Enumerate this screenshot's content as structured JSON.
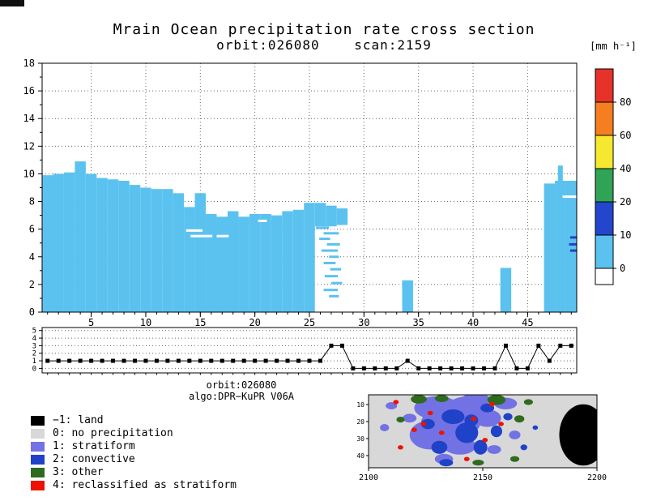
{
  "header": {
    "title": "Mrain Ocean precipitation rate cross section",
    "subtitle": "orbit:026080    scan:2159",
    "colorbar_unit": "[mm h⁻¹]"
  },
  "caption": {
    "line1": "orbit:026080",
    "line2": "algo:DPR−KuPR V06A"
  },
  "colorbar": {
    "labels": [
      "80",
      "60",
      "40",
      "20",
      "10",
      "0"
    ],
    "colors_top_to_bottom": [
      "#e63229",
      "#f57e20",
      "#f5e82e",
      "#2fa356",
      "#2446cc",
      "#5bc2f0",
      "#ffffff"
    ]
  },
  "legend": {
    "items": [
      {
        "color": "#000000",
        "label": "−1: land"
      },
      {
        "color": "#d8d8d8",
        "label": "0: no precipitation"
      },
      {
        "color": "#7272e4",
        "label": "1: stratiform"
      },
      {
        "color": "#2042c8",
        "label": "2: convective"
      },
      {
        "color": "#2e6b1e",
        "label": "3: other"
      },
      {
        "color": "#ee1100",
        "label": "4: reclassified as stratiform"
      }
    ]
  },
  "chart_data": [
    {
      "name": "cross_section",
      "type": "area",
      "title": "Mrain Ocean precipitation rate cross section",
      "xlim": [
        0.5,
        49.5
      ],
      "ylim": [
        0,
        18
      ],
      "xticks": [
        5,
        10,
        15,
        20,
        25,
        30,
        35,
        40,
        45
      ],
      "yticks": [
        0,
        2,
        4,
        6,
        8,
        10,
        12,
        14,
        16,
        18
      ],
      "grid": "dotted",
      "fill_color": "#5bc2f0",
      "columns": [
        {
          "x": 1,
          "h": 9.9
        },
        {
          "x": 2,
          "h": 10.0
        },
        {
          "x": 3,
          "h": 10.1
        },
        {
          "x": 4,
          "h": 10.9
        },
        {
          "x": 5,
          "h": 10.0
        },
        {
          "x": 6,
          "h": 9.7
        },
        {
          "x": 7,
          "h": 9.6
        },
        {
          "x": 8,
          "h": 9.5
        },
        {
          "x": 9,
          "h": 9.2
        },
        {
          "x": 10,
          "h": 9.0
        },
        {
          "x": 11,
          "h": 8.9
        },
        {
          "x": 12,
          "h": 8.9
        },
        {
          "x": 13,
          "h": 8.6
        },
        {
          "x": 14,
          "h": 7.6
        },
        {
          "x": 15,
          "h": 8.6
        },
        {
          "x": 16,
          "h": 7.1
        },
        {
          "x": 17,
          "h": 6.9
        },
        {
          "x": 18,
          "h": 7.3
        },
        {
          "x": 19,
          "h": 6.9
        },
        {
          "x": 20,
          "h": 7.1
        },
        {
          "x": 21,
          "h": 7.1
        },
        {
          "x": 22,
          "h": 7.0
        },
        {
          "x": 23,
          "h": 7.3
        },
        {
          "x": 24,
          "h": 7.4
        },
        {
          "x": 25,
          "h": 7.9
        },
        {
          "x": 26,
          "h": 7.9,
          "b": 6.2
        },
        {
          "x": 27,
          "h": 7.7,
          "b": 6.2
        },
        {
          "x": 28,
          "h": 7.5,
          "b": 6.3
        },
        {
          "x": 34,
          "h": 2.3
        },
        {
          "x": 43,
          "h": 3.2
        },
        {
          "x": 47,
          "h": 9.3
        },
        {
          "x": 48,
          "h": 9.5
        },
        {
          "x": 48,
          "h": 10.6,
          "w": 0.45
        },
        {
          "x": 49,
          "h": 9.5
        }
      ],
      "dashes": [
        {
          "x": 13.7,
          "y": 5.9,
          "w": 1.5,
          "c": "#ffffff"
        },
        {
          "x": 14.1,
          "y": 5.5,
          "w": 2.0,
          "c": "#ffffff"
        },
        {
          "x": 16.5,
          "y": 5.5,
          "w": 1.1,
          "c": "#ffffff"
        },
        {
          "x": 20.3,
          "y": 6.6,
          "w": 0.8,
          "c": "#ffffff"
        },
        {
          "x": 48.2,
          "y": 8.35,
          "w": 1.3,
          "c": "#ffffff"
        },
        {
          "x": 25.6,
          "y": 6.1,
          "w": 1.2
        },
        {
          "x": 26.3,
          "y": 5.7,
          "w": 1.4
        },
        {
          "x": 25.9,
          "y": 5.3,
          "w": 1.0
        },
        {
          "x": 26.6,
          "y": 4.9,
          "w": 1.2
        },
        {
          "x": 26.1,
          "y": 4.45,
          "w": 1.5
        },
        {
          "x": 26.8,
          "y": 4.0,
          "w": 0.9
        },
        {
          "x": 26.3,
          "y": 3.55,
          "w": 1.1
        },
        {
          "x": 26.9,
          "y": 3.1,
          "w": 1.0
        },
        {
          "x": 26.4,
          "y": 2.6,
          "w": 1.2
        },
        {
          "x": 27.0,
          "y": 2.1,
          "w": 1.0
        },
        {
          "x": 26.3,
          "y": 1.6,
          "w": 1.3
        },
        {
          "x": 26.8,
          "y": 1.15,
          "w": 0.9
        },
        {
          "x": 48.9,
          "y": 5.4,
          "w": 0.6,
          "c": "#2042c8"
        },
        {
          "x": 48.8,
          "y": 4.9,
          "w": 0.7,
          "c": "#2042c8"
        },
        {
          "x": 48.9,
          "y": 4.45,
          "w": 0.6,
          "c": "#2042c8"
        }
      ]
    },
    {
      "name": "rain_type_strip",
      "type": "line",
      "ylim": [
        -0.6,
        5.4
      ],
      "yticks": [
        0,
        1,
        2,
        3,
        4,
        5
      ],
      "x_start": 1,
      "marker": "black-square",
      "values": [
        1,
        1,
        1,
        1,
        1,
        1,
        1,
        1,
        1,
        1,
        1,
        1,
        1,
        1,
        1,
        1,
        1,
        1,
        1,
        1,
        1,
        1,
        1,
        1,
        1,
        1,
        3,
        3,
        0,
        0,
        0,
        0,
        0,
        1,
        0,
        0,
        0,
        0,
        0,
        0,
        0,
        0,
        3,
        0,
        0,
        3,
        1,
        3,
        3
      ]
    },
    {
      "name": "classification_map",
      "type": "heatmap",
      "xtick_labels": [
        "2100",
        "2150",
        "2200"
      ],
      "ytick_labels": [
        "10",
        "20",
        "30",
        "40"
      ],
      "background": "#d8d8d8",
      "blobs": [
        {
          "s": "e",
          "x": 0.3,
          "y": 0.18,
          "w": 0.1,
          "h": 0.16,
          "c": "#7272e4"
        },
        {
          "s": "e",
          "x": 0.36,
          "y": 0.38,
          "w": 0.13,
          "h": 0.22,
          "c": "#7272e4"
        },
        {
          "s": "e",
          "x": 0.27,
          "y": 0.55,
          "w": 0.09,
          "h": 0.2,
          "c": "#7272e4"
        },
        {
          "s": "e",
          "x": 0.44,
          "y": 0.15,
          "w": 0.09,
          "h": 0.13,
          "c": "#7272e4"
        },
        {
          "s": "e",
          "x": 0.52,
          "y": 0.32,
          "w": 0.06,
          "h": 0.12,
          "c": "#7272e4"
        },
        {
          "s": "e",
          "x": 0.4,
          "y": 0.7,
          "w": 0.07,
          "h": 0.12,
          "c": "#7272e4"
        },
        {
          "s": "e",
          "x": 0.6,
          "y": 0.12,
          "w": 0.05,
          "h": 0.08,
          "c": "#7272e4"
        },
        {
          "s": "e",
          "x": 0.1,
          "y": 0.15,
          "w": 0.025,
          "h": 0.05,
          "c": "#7272e4"
        },
        {
          "s": "e",
          "x": 0.07,
          "y": 0.45,
          "w": 0.02,
          "h": 0.05,
          "c": "#7272e4"
        },
        {
          "s": "e",
          "x": 0.18,
          "y": 0.32,
          "w": 0.03,
          "h": 0.06,
          "c": "#7272e4"
        },
        {
          "s": "e",
          "x": 0.33,
          "y": 0.88,
          "w": 0.04,
          "h": 0.07,
          "c": "#7272e4"
        },
        {
          "s": "e",
          "x": 0.55,
          "y": 0.75,
          "w": 0.03,
          "h": 0.06,
          "c": "#7272e4"
        },
        {
          "s": "e",
          "x": 0.64,
          "y": 0.55,
          "w": 0.025,
          "h": 0.06,
          "c": "#7272e4"
        },
        {
          "s": "e",
          "x": 0.47,
          "y": 0.05,
          "w": 0.06,
          "h": 0.07,
          "c": "#7272e4"
        },
        {
          "s": "e",
          "x": 0.37,
          "y": 0.3,
          "w": 0.05,
          "h": 0.1,
          "c": "#2042c8"
        },
        {
          "s": "e",
          "x": 0.43,
          "y": 0.52,
          "w": 0.05,
          "h": 0.14,
          "c": "#2042c8"
        },
        {
          "s": "e",
          "x": 0.31,
          "y": 0.72,
          "w": 0.035,
          "h": 0.09,
          "c": "#2042c8"
        },
        {
          "s": "e",
          "x": 0.49,
          "y": 0.72,
          "w": 0.03,
          "h": 0.1,
          "c": "#2042c8"
        },
        {
          "s": "e",
          "x": 0.56,
          "y": 0.5,
          "w": 0.025,
          "h": 0.08,
          "c": "#2042c8"
        },
        {
          "s": "e",
          "x": 0.52,
          "y": 0.18,
          "w": 0.03,
          "h": 0.06,
          "c": "#2042c8"
        },
        {
          "s": "e",
          "x": 0.26,
          "y": 0.4,
          "w": 0.03,
          "h": 0.07,
          "c": "#2042c8"
        },
        {
          "s": "e",
          "x": 0.61,
          "y": 0.3,
          "w": 0.02,
          "h": 0.05,
          "c": "#2042c8"
        },
        {
          "s": "e",
          "x": 0.45,
          "y": 0.35,
          "w": 0.03,
          "h": 0.08,
          "c": "#2042c8"
        },
        {
          "s": "e",
          "x": 0.34,
          "y": 0.93,
          "w": 0.03,
          "h": 0.05,
          "c": "#2042c8"
        },
        {
          "s": "e",
          "x": 0.68,
          "y": 0.72,
          "w": 0.015,
          "h": 0.04,
          "c": "#2042c8"
        },
        {
          "s": "e",
          "x": 0.73,
          "y": 0.45,
          "w": 0.012,
          "h": 0.03,
          "c": "#2042c8"
        },
        {
          "s": "e",
          "x": 0.22,
          "y": 0.06,
          "w": 0.035,
          "h": 0.06,
          "c": "#2e6b1e"
        },
        {
          "s": "e",
          "x": 0.32,
          "y": 0.05,
          "w": 0.03,
          "h": 0.05,
          "c": "#2e6b1e"
        },
        {
          "s": "e",
          "x": 0.56,
          "y": 0.07,
          "w": 0.04,
          "h": 0.07,
          "c": "#2e6b1e"
        },
        {
          "s": "e",
          "x": 0.66,
          "y": 0.33,
          "w": 0.022,
          "h": 0.05,
          "c": "#2e6b1e"
        },
        {
          "s": "e",
          "x": 0.14,
          "y": 0.34,
          "w": 0.018,
          "h": 0.04,
          "c": "#2e6b1e"
        },
        {
          "s": "e",
          "x": 0.7,
          "y": 0.1,
          "w": 0.02,
          "h": 0.04,
          "c": "#2e6b1e"
        },
        {
          "s": "e",
          "x": 0.48,
          "y": 0.93,
          "w": 0.025,
          "h": 0.04,
          "c": "#2e6b1e"
        },
        {
          "s": "e",
          "x": 0.64,
          "y": 0.88,
          "w": 0.02,
          "h": 0.04,
          "c": "#2e6b1e"
        },
        {
          "s": "e",
          "x": 0.2,
          "y": 0.48,
          "w": 0.012,
          "h": 0.03,
          "c": "#ee1100"
        },
        {
          "s": "e",
          "x": 0.24,
          "y": 0.4,
          "w": 0.012,
          "h": 0.03,
          "c": "#ee1100"
        },
        {
          "s": "e",
          "x": 0.46,
          "y": 0.33,
          "w": 0.012,
          "h": 0.03,
          "c": "#ee1100"
        },
        {
          "s": "e",
          "x": 0.51,
          "y": 0.62,
          "w": 0.012,
          "h": 0.03,
          "c": "#ee1100"
        },
        {
          "s": "e",
          "x": 0.32,
          "y": 0.52,
          "w": 0.012,
          "h": 0.03,
          "c": "#ee1100"
        },
        {
          "s": "e",
          "x": 0.14,
          "y": 0.72,
          "w": 0.012,
          "h": 0.03,
          "c": "#ee1100"
        },
        {
          "s": "e",
          "x": 0.54,
          "y": 0.13,
          "w": 0.012,
          "h": 0.03,
          "c": "#ee1100"
        },
        {
          "s": "e",
          "x": 0.43,
          "y": 0.88,
          "w": 0.012,
          "h": 0.03,
          "c": "#ee1100"
        },
        {
          "s": "e",
          "x": 0.12,
          "y": 0.1,
          "w": 0.012,
          "h": 0.03,
          "c": "#ee1100"
        },
        {
          "s": "e",
          "x": 0.58,
          "y": 0.4,
          "w": 0.012,
          "h": 0.03,
          "c": "#ee1100"
        },
        {
          "s": "e",
          "x": 0.27,
          "y": 0.25,
          "w": 0.012,
          "h": 0.03,
          "c": "#ee1100"
        },
        {
          "s": "e",
          "x": 0.94,
          "y": 0.55,
          "w": 0.105,
          "h": 0.42,
          "c": "#000000"
        },
        {
          "s": "r",
          "x": 0.93,
          "y": 0.25,
          "w": 0.07,
          "h": 0.6,
          "c": "#000000"
        }
      ]
    }
  ]
}
